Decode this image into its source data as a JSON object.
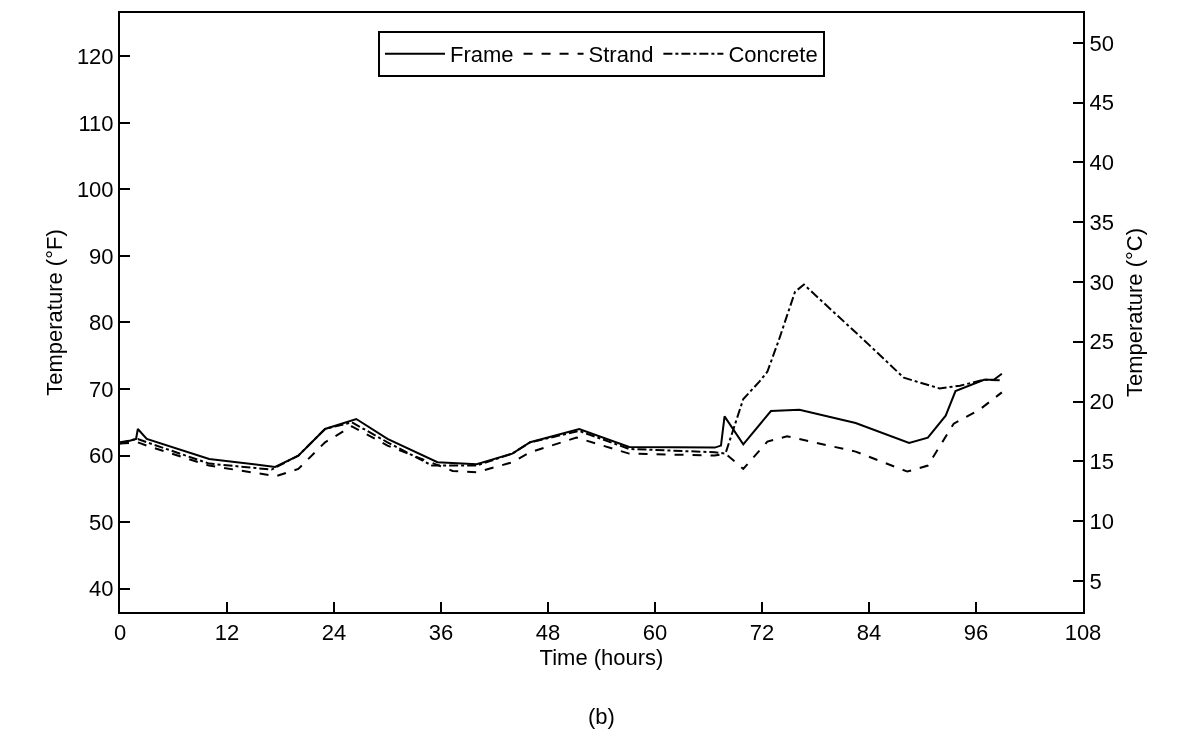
{
  "chart_data": {
    "type": "line",
    "xlabel": "Time (hours)",
    "ylabel": "Temperature (°F)",
    "y2label": "Temperature (°C)",
    "annotations": [
      "(b)"
    ],
    "xlim": [
      0,
      108
    ],
    "xticks": [
      0,
      12,
      24,
      36,
      48,
      60,
      72,
      84,
      96,
      108
    ],
    "ylim": [
      36.5,
      126.5
    ],
    "yticks": [
      40,
      50,
      60,
      70,
      80,
      90,
      100,
      110,
      120
    ],
    "y2lim": [
      2.4,
      52.5
    ],
    "y2ticks": [
      5,
      10,
      15,
      20,
      25,
      30,
      35,
      40,
      45,
      50
    ],
    "legend": "top",
    "marker": "none",
    "series": [
      {
        "name": "Frame",
        "color": "#000000",
        "line_style": "solid",
        "x": [
          0,
          1.8,
          2,
          3,
          10,
          17.4,
          20,
          23,
          26.5,
          30,
          35.6,
          40,
          44,
          46,
          51.5,
          57.1,
          66.7,
          67.4,
          67.8,
          69.9,
          73,
          76.2,
          82.5,
          88.5,
          90.6,
          92.6,
          93.7,
          96.9,
          98,
          98.9
        ],
        "values": [
          61.8,
          62.5,
          64,
          62.5,
          59.5,
          58.3,
          60,
          64,
          65.5,
          62.5,
          59,
          58.7,
          60.3,
          62,
          64,
          61.3,
          61.2,
          61.5,
          65.9,
          61.7,
          66.7,
          66.9,
          64.9,
          61.9,
          62.7,
          66,
          69.7,
          71.4,
          71.4,
          72.3
        ]
      },
      {
        "name": "Strand",
        "color": "#000000",
        "line_style": "dashed",
        "x": [
          0,
          2,
          3,
          10,
          17.5,
          20,
          23,
          26,
          30,
          37.3,
          40,
          44,
          46,
          51.2,
          57.1,
          66.7,
          67.9,
          69.9,
          72.6,
          74.8,
          82.5,
          88.3,
          90.6,
          93.5,
          96.4,
          98.9
        ],
        "values": [
          61.8,
          62,
          61.5,
          58.5,
          56.9,
          58,
          62,
          64.4,
          61.5,
          57.7,
          57.5,
          59,
          60.5,
          62.7,
          60.3,
          60,
          60.3,
          58,
          62.1,
          62.9,
          60.6,
          57.6,
          58.5,
          64.8,
          66.9,
          69.5
        ]
      },
      {
        "name": "Concrete",
        "color": "#000000",
        "line_style": "dashdot",
        "x": [
          0,
          2,
          3,
          10,
          17,
          20,
          23,
          26,
          30,
          35,
          40,
          44,
          46,
          51.5,
          57.1,
          66.7,
          67.9,
          69.9,
          71.7,
          72.6,
          73.9,
          75.7,
          76.7,
          83.4,
          87.9,
          91.9,
          94.2,
          96.9,
          98.8
        ],
        "values": [
          62,
          62.5,
          62,
          58.8,
          57.9,
          60,
          64,
          65,
          62,
          58.5,
          58.5,
          60.3,
          62,
          63.7,
          61,
          60.5,
          60.3,
          68.5,
          71.1,
          72.6,
          77.4,
          84.6,
          85.7,
          77.4,
          71.7,
          70.1,
          70.5,
          71.4,
          71.3
        ]
      }
    ]
  }
}
